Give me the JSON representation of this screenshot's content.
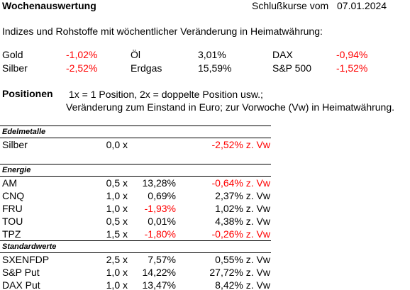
{
  "header": {
    "title": "Wochenauswertung",
    "date_label": "Schlußkurse vom",
    "date": "07.01.2024"
  },
  "intro": "Indizes und Rohstoffe mit wöchentlicher Veränderung in Heimatwährung:",
  "indices": [
    [
      {
        "name": "Gold",
        "change": "-1,02%"
      },
      {
        "name": "Öl",
        "change": "3,01%"
      },
      {
        "name": "DAX",
        "change": "-0,94%"
      }
    ],
    [
      {
        "name": "Silber",
        "change": "-2,52%"
      },
      {
        "name": "Erdgas",
        "change": "15,59%"
      },
      {
        "name": "S&P 500",
        "change": "-1,52%"
      }
    ]
  ],
  "positions": {
    "title": "Positionen",
    "note_lines": [
      "1x = 1 Position, 2x = doppelte Position usw.;",
      "Veränderung zum Einstand in Euro; zur Vorwoche (Vw) in Heimatwährung."
    ]
  },
  "table": {
    "sections": [
      {
        "title": "Edelmetalle",
        "rows": [
          {
            "name": "Silber",
            "position": "0,0 x",
            "change": null,
            "weekly": "-2,52% z. Vw"
          }
        ]
      },
      {
        "title": "Energie",
        "rows": [
          {
            "name": "AM",
            "position": "0,5 x",
            "change": "13,28%",
            "weekly": "-0,64% z. Vw"
          },
          {
            "name": "CNQ",
            "position": "1,0 x",
            "change": "0,69%",
            "weekly": "2,37% z. Vw"
          },
          {
            "name": "FRU",
            "position": "1,0 x",
            "change": "-1,93%",
            "weekly": "1,02% z. Vw"
          },
          {
            "name": "TOU",
            "position": "0,5 x",
            "change": "0,01%",
            "weekly": "4,38% z. Vw"
          },
          {
            "name": "TPZ",
            "position": "1,5 x",
            "change": "-1,80%",
            "weekly": "-0,26% z. Vw"
          }
        ]
      },
      {
        "title": "Standardwerte",
        "rows": [
          {
            "name": "SXENFDP",
            "position": "2,5 x",
            "change": "7,57%",
            "weekly": "0,55% z. Vw"
          },
          {
            "name": "S&P Put",
            "position": "1,0 x",
            "change": "14,22%",
            "weekly": "27,72% z. Vw"
          },
          {
            "name": "DAX Put",
            "position": "1,0 x",
            "change": "13,47%",
            "weekly": "8,42% z. Vw"
          }
        ]
      }
    ]
  }
}
